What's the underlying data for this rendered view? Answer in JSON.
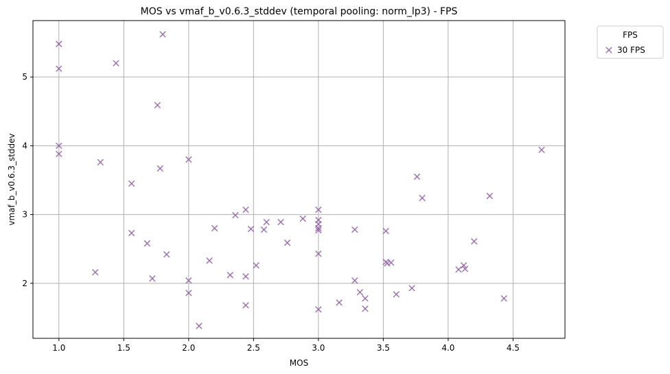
{
  "chart_data": {
    "type": "scatter",
    "title": "MOS vs vmaf_b_v0.6.3_stddev (temporal pooling: norm_lp3) - FPS",
    "xlabel": "MOS",
    "ylabel": "vmaf_b_v0.6.3_stddev",
    "xlim": [
      0.8,
      4.9
    ],
    "ylim": [
      1.2,
      5.82
    ],
    "xticks": [
      1.0,
      1.5,
      2.0,
      2.5,
      3.0,
      3.5,
      4.0,
      4.5
    ],
    "xtick_labels": [
      "1.0",
      "1.5",
      "2.0",
      "2.5",
      "3.0",
      "3.5",
      "4.0",
      "4.5"
    ],
    "yticks": [
      2,
      3,
      4,
      5
    ],
    "ytick_labels": [
      "2",
      "3",
      "4",
      "5"
    ],
    "grid": true,
    "legend": {
      "title": "FPS",
      "placement": "outside-top-right",
      "entries": [
        "30 FPS"
      ]
    },
    "marker": "x",
    "color": "#9467a6",
    "series": [
      {
        "name": "30 FPS",
        "points": [
          [
            1.0,
            5.48
          ],
          [
            1.0,
            5.12
          ],
          [
            1.0,
            4.0
          ],
          [
            1.0,
            3.88
          ],
          [
            1.28,
            2.16
          ],
          [
            1.32,
            3.76
          ],
          [
            1.44,
            5.2
          ],
          [
            1.56,
            3.45
          ],
          [
            1.56,
            2.73
          ],
          [
            1.68,
            2.58
          ],
          [
            1.72,
            2.07
          ],
          [
            1.76,
            4.59
          ],
          [
            1.78,
            3.67
          ],
          [
            1.8,
            5.62
          ],
          [
            1.83,
            2.42
          ],
          [
            2.0,
            3.8
          ],
          [
            2.0,
            2.04
          ],
          [
            2.0,
            1.86
          ],
          [
            2.08,
            1.38
          ],
          [
            2.16,
            2.33
          ],
          [
            2.2,
            2.8
          ],
          [
            2.32,
            2.12
          ],
          [
            2.36,
            2.99
          ],
          [
            2.44,
            3.07
          ],
          [
            2.44,
            2.1
          ],
          [
            2.44,
            1.68
          ],
          [
            2.48,
            2.79
          ],
          [
            2.52,
            2.26
          ],
          [
            2.58,
            2.78
          ],
          [
            2.6,
            2.89
          ],
          [
            2.71,
            2.89
          ],
          [
            2.76,
            2.59
          ],
          [
            2.88,
            2.94
          ],
          [
            3.0,
            3.07
          ],
          [
            3.0,
            2.92
          ],
          [
            3.0,
            2.86
          ],
          [
            3.0,
            2.8
          ],
          [
            3.0,
            2.77
          ],
          [
            3.0,
            2.43
          ],
          [
            3.0,
            1.62
          ],
          [
            3.16,
            1.72
          ],
          [
            3.28,
            2.78
          ],
          [
            3.28,
            2.04
          ],
          [
            3.32,
            1.87
          ],
          [
            3.36,
            1.78
          ],
          [
            3.36,
            1.63
          ],
          [
            3.52,
            2.76
          ],
          [
            3.52,
            2.31
          ],
          [
            3.53,
            2.29
          ],
          [
            3.56,
            2.3
          ],
          [
            3.6,
            1.84
          ],
          [
            3.72,
            1.93
          ],
          [
            3.76,
            3.55
          ],
          [
            3.8,
            3.24
          ],
          [
            4.08,
            2.2
          ],
          [
            4.12,
            2.26
          ],
          [
            4.13,
            2.21
          ],
          [
            4.2,
            2.61
          ],
          [
            4.32,
            3.27
          ],
          [
            4.43,
            1.78
          ],
          [
            4.72,
            3.94
          ]
        ]
      }
    ]
  }
}
